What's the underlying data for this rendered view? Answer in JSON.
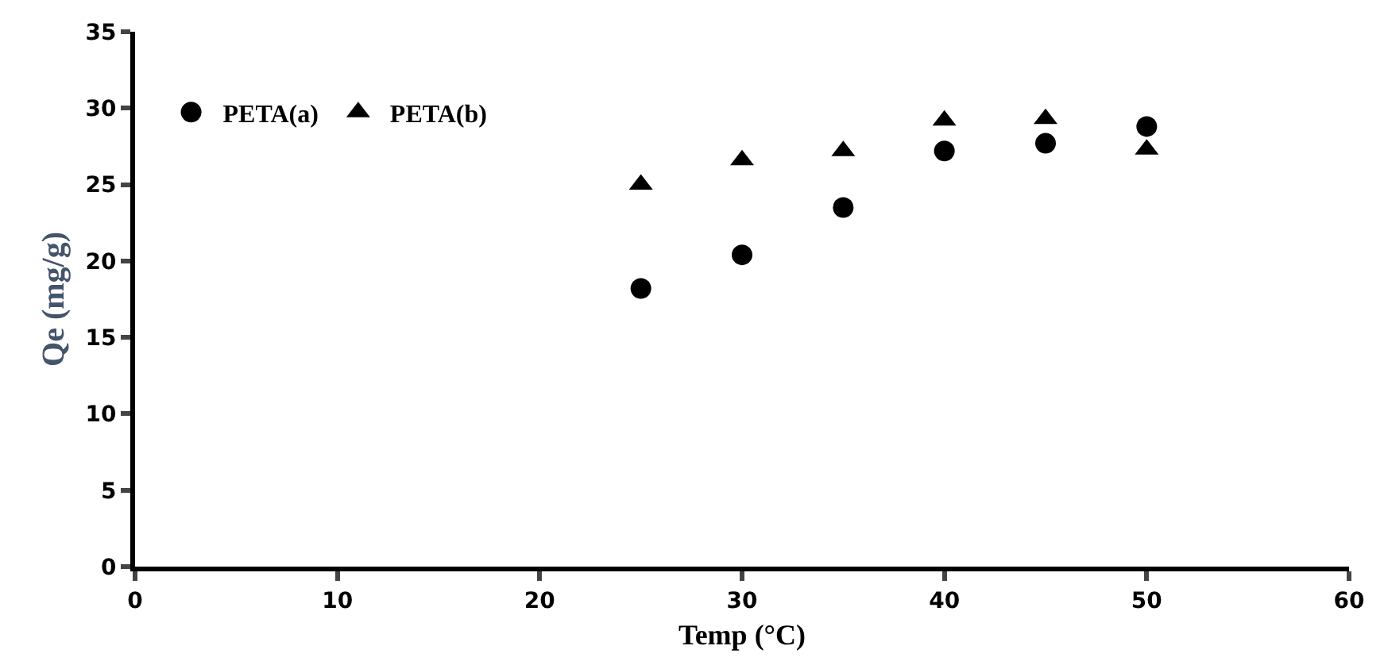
{
  "chart_data": {
    "type": "scatter",
    "xlabel": "Temp (°C)",
    "ylabel": "Qe (mg/g)",
    "x": [
      25,
      30,
      35,
      40,
      45,
      50
    ],
    "series": [
      {
        "name": "PETA(a)",
        "color": "#000000",
        "marker": "circle",
        "values": [
          18.2,
          20.4,
          23.5,
          27.2,
          27.7,
          28.8
        ]
      },
      {
        "name": "PETA(b)",
        "color": "#000000",
        "marker": "triangle",
        "values": [
          25.0,
          26.6,
          27.2,
          29.2,
          29.3,
          27.3
        ]
      }
    ],
    "xlim": [
      0,
      60
    ],
    "xticks": [
      0,
      10,
      20,
      30,
      40,
      50,
      60
    ],
    "ylim": [
      0,
      35
    ],
    "yticks": [
      0,
      5,
      10,
      15,
      20,
      25,
      30,
      35
    ],
    "legend": "top left"
  }
}
